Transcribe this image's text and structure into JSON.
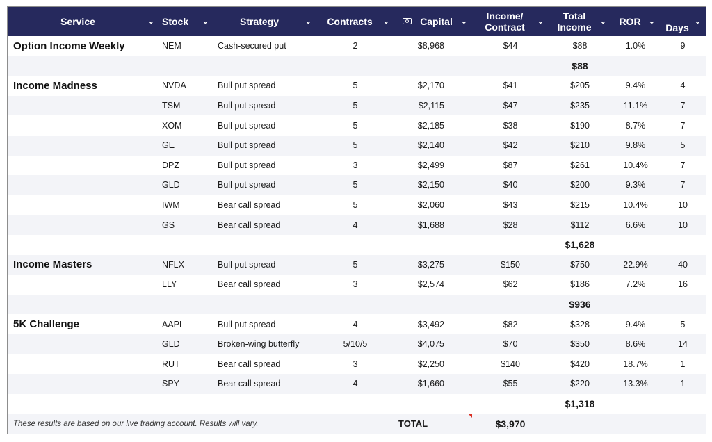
{
  "headers": {
    "service": "Service",
    "stock": "Stock",
    "strategy": "Strategy",
    "contracts": "Contracts",
    "capital": "Capital",
    "income_line1": "Income/",
    "income_line2": "Contract",
    "total_line1": "Total",
    "total_line2": "Income",
    "ror": "ROR",
    "days": "Days",
    "chevron": "⌄"
  },
  "groups": [
    {
      "service": "Option Income Weekly",
      "rows": [
        {
          "stock": "NEM",
          "strategy": "Cash-secured put",
          "contracts": "2",
          "capital": "$8,968",
          "income": "$44",
          "total": "$88",
          "ror": "1.0%",
          "days": "9"
        }
      ],
      "subtotal": "$88"
    },
    {
      "service": "Income Madness",
      "rows": [
        {
          "stock": "NVDA",
          "strategy": "Bull put spread",
          "contracts": "5",
          "capital": "$2,170",
          "income": "$41",
          "total": "$205",
          "ror": "9.4%",
          "days": "4"
        },
        {
          "stock": "TSM",
          "strategy": "Bull put spread",
          "contracts": "5",
          "capital": "$2,115",
          "income": "$47",
          "total": "$235",
          "ror": "11.1%",
          "days": "7"
        },
        {
          "stock": "XOM",
          "strategy": "Bull put spread",
          "contracts": "5",
          "capital": "$2,185",
          "income": "$38",
          "total": "$190",
          "ror": "8.7%",
          "days": "7"
        },
        {
          "stock": "GE",
          "strategy": "Bull put spread",
          "contracts": "5",
          "capital": "$2,140",
          "income": "$42",
          "total": "$210",
          "ror": "9.8%",
          "days": "5"
        },
        {
          "stock": "DPZ",
          "strategy": "Bull put spread",
          "contracts": "3",
          "capital": "$2,499",
          "income": "$87",
          "total": "$261",
          "ror": "10.4%",
          "days": "7"
        },
        {
          "stock": "GLD",
          "strategy": "Bull put spread",
          "contracts": "5",
          "capital": "$2,150",
          "income": "$40",
          "total": "$200",
          "ror": "9.3%",
          "days": "7"
        },
        {
          "stock": "IWM",
          "strategy": "Bear call spread",
          "contracts": "5",
          "capital": "$2,060",
          "income": "$43",
          "total": "$215",
          "ror": "10.4%",
          "days": "10"
        },
        {
          "stock": "GS",
          "strategy": "Bear call spread",
          "contracts": "4",
          "capital": "$1,688",
          "income": "$28",
          "total": "$112",
          "ror": "6.6%",
          "days": "10"
        }
      ],
      "subtotal": "$1,628"
    },
    {
      "service": "Income Masters",
      "rows": [
        {
          "stock": "NFLX",
          "strategy": "Bull put spread",
          "contracts": "5",
          "capital": "$3,275",
          "income": "$150",
          "total": "$750",
          "ror": "22.9%",
          "days": "40"
        },
        {
          "stock": "LLY",
          "strategy": "Bear call spread",
          "contracts": "3",
          "capital": "$2,574",
          "income": "$62",
          "total": "$186",
          "ror": "7.2%",
          "days": "16"
        }
      ],
      "subtotal": "$936"
    },
    {
      "service": "5K Challenge",
      "rows": [
        {
          "stock": "AAPL",
          "strategy": "Bull put spread",
          "contracts": "4",
          "capital": "$3,492",
          "income": "$82",
          "total": "$328",
          "ror": "9.4%",
          "days": "5"
        },
        {
          "stock": "GLD",
          "strategy": "Broken-wing butterfly",
          "contracts": "5/10/5",
          "capital": "$4,075",
          "income": "$70",
          "total": "$350",
          "ror": "8.6%",
          "days": "14"
        },
        {
          "stock": "RUT",
          "strategy": "Bear call spread",
          "contracts": "3",
          "capital": "$2,250",
          "income": "$140",
          "total": "$420",
          "ror": "18.7%",
          "days": "1"
        },
        {
          "stock": "SPY",
          "strategy": "Bear call spread",
          "contracts": "4",
          "capital": "$1,660",
          "income": "$55",
          "total": "$220",
          "ror": "13.3%",
          "days": "1"
        }
      ],
      "subtotal": "$1,318"
    }
  ],
  "footer": {
    "note": "These results are based on our live trading account. Results will vary.",
    "total_label": "TOTAL",
    "total_value": "$3,970"
  },
  "colors": {
    "header_bg": "#26295d",
    "alt_row_bg": "#f3f4f8",
    "comment_marker": "#d93025"
  },
  "icons": {
    "capital_header": "cash-icon",
    "column_menu": "chevron-down-icon"
  }
}
